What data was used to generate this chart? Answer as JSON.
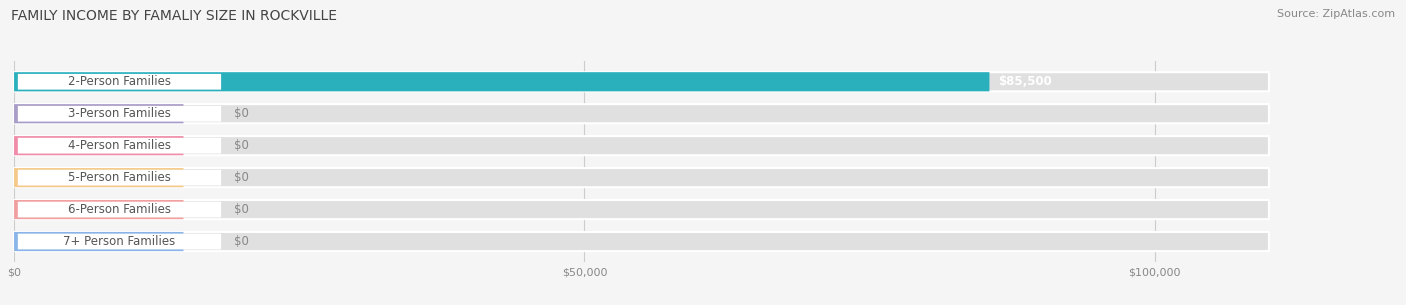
{
  "title": "FAMILY INCOME BY FAMALIY SIZE IN ROCKVILLE",
  "source": "Source: ZipAtlas.com",
  "categories": [
    "2-Person Families",
    "3-Person Families",
    "4-Person Families",
    "5-Person Families",
    "6-Person Families",
    "7+ Person Families"
  ],
  "values": [
    85500,
    0,
    0,
    0,
    0,
    0
  ],
  "bar_colors": [
    "#2ab0bc",
    "#a89cc8",
    "#f08caa",
    "#f5c98a",
    "#f0a0a0",
    "#8ab4e8"
  ],
  "value_labels": [
    "$85,500",
    "$0",
    "$0",
    "$0",
    "$0",
    "$0"
  ],
  "xlim_max": 110000,
  "xticks": [
    0,
    50000,
    100000
  ],
  "xticklabels": [
    "$0",
    "$50,000",
    "$100,000"
  ],
  "bg_color": "#f5f5f5",
  "bar_bg_color": "#e0e0e0",
  "bar_white": "#ffffff",
  "title_fontsize": 10,
  "source_fontsize": 8,
  "label_fontsize": 8.5,
  "value_fontsize": 8.5
}
